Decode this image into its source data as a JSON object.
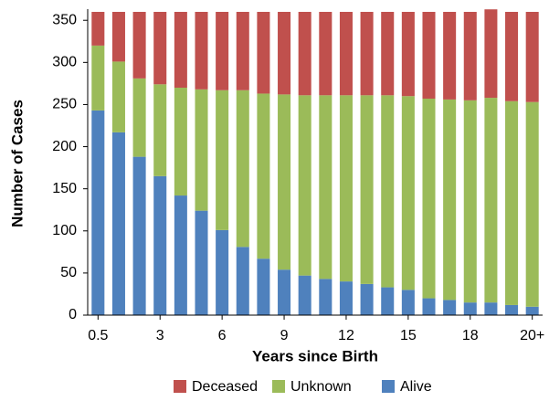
{
  "chart_data": {
    "type": "stacked-bar",
    "x_label": "Years since Birth",
    "y_label": "Number of Cases",
    "categories": [
      "0.5",
      null,
      null,
      "3",
      null,
      null,
      "6",
      null,
      null,
      "9",
      null,
      null,
      "12",
      null,
      null,
      "15",
      null,
      null,
      "18",
      null,
      null,
      "20+"
    ],
    "series": [
      {
        "name": "Alive",
        "color": "#4f81bd",
        "values": [
          243,
          217,
          188,
          165,
          142,
          124,
          101,
          81,
          67,
          54,
          47,
          43,
          40,
          37,
          33,
          30,
          20,
          18,
          15,
          15,
          12,
          10
        ]
      },
      {
        "name": "Unknown",
        "color": "#9bbb59",
        "values": [
          77,
          84,
          93,
          109,
          128,
          144,
          166,
          186,
          196,
          208,
          214,
          218,
          221,
          224,
          228,
          230,
          237,
          238,
          240,
          243,
          242,
          243
        ]
      },
      {
        "name": "Deceased",
        "color": "#c0504d",
        "values": [
          40,
          59,
          79,
          86,
          90,
          92,
          93,
          93,
          97,
          98,
          99,
          99,
          99,
          99,
          99,
          100,
          103,
          104,
          105,
          105,
          106,
          107
        ]
      }
    ],
    "ylim": [
      0,
      360
    ],
    "yticks": [
      0,
      50,
      100,
      150,
      200,
      250,
      300,
      350
    ],
    "grid": false,
    "legend": "bottom"
  }
}
